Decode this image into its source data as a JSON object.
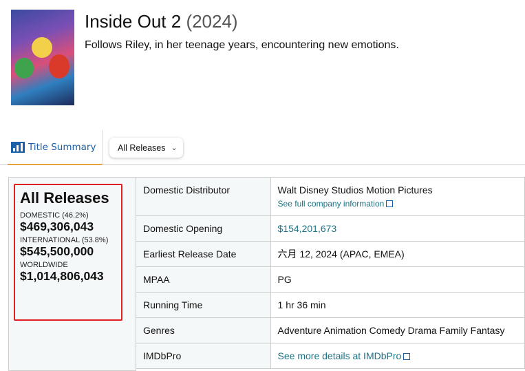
{
  "movie": {
    "title": "Inside Out 2",
    "year": "(2024)",
    "description": "Follows Riley, in her teenage years, encountering new emotions."
  },
  "tabs": {
    "title_summary": "Title Summary",
    "release_select": "All Releases"
  },
  "summary": {
    "heading": "All Releases",
    "domestic_label": "DOMESTIC (46.2%)",
    "domestic": "$469,306,043",
    "international_label": "INTERNATIONAL (53.8%)",
    "international": "$545,500,000",
    "worldwide_label": "WORLDWIDE",
    "worldwide": "$1,014,806,043"
  },
  "details": [
    {
      "label": "Domestic Distributor",
      "value": "Walt Disney Studios Motion Pictures",
      "link": "See full company information"
    },
    {
      "label": "Domestic Opening",
      "value": "$154,201,673"
    },
    {
      "label": "Earliest Release Date",
      "value": "六月 12, 2024 (APAC, EMEA)"
    },
    {
      "label": "MPAA",
      "value": "PG"
    },
    {
      "label": "Running Time",
      "value": "1 hr 36 min"
    },
    {
      "label": "Genres",
      "value": "Adventure Animation Comedy Drama Family Fantasy"
    },
    {
      "label": "IMDbPro",
      "value": "See more details at IMDbPro"
    }
  ]
}
